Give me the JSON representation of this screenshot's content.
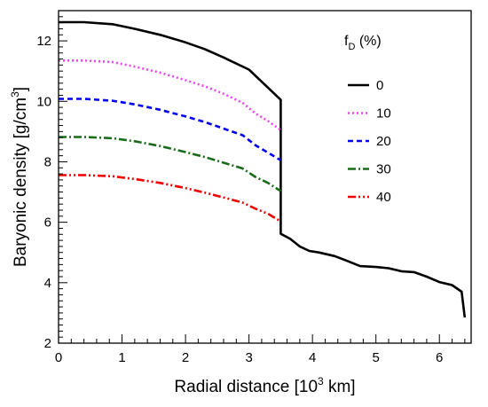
{
  "chart_data": {
    "type": "line",
    "title": "",
    "xlabel": "Radial distance [10",
    "xlabel_sup": "3",
    "xlabel_tail": " km]",
    "ylabel": "Baryonic density [g/cm",
    "ylabel_sup": "3",
    "ylabel_tail": "]",
    "xlim": [
      0,
      6.5
    ],
    "ylim": [
      2,
      13
    ],
    "x_ticks": [
      0,
      1,
      2,
      3,
      4,
      5,
      6
    ],
    "y_ticks": [
      2,
      4,
      6,
      8,
      10,
      12
    ],
    "grid": false,
    "legend": {
      "title_main": "f",
      "title_sub": "D",
      "title_tail": " (%)",
      "placement": "right"
    },
    "series": [
      {
        "name": "0",
        "color": "#000000",
        "dash": "solid",
        "points": [
          [
            0,
            12.62
          ],
          [
            0.4,
            12.62
          ],
          [
            0.85,
            12.55
          ],
          [
            1.2,
            12.4
          ],
          [
            1.6,
            12.2
          ],
          [
            2.0,
            11.95
          ],
          [
            2.3,
            11.73
          ],
          [
            2.6,
            11.45
          ],
          [
            3.0,
            11.05
          ],
          [
            3.3,
            10.45
          ],
          [
            3.5,
            10.05
          ],
          [
            3.5,
            5.62
          ],
          [
            3.65,
            5.45
          ],
          [
            3.8,
            5.2
          ],
          [
            3.95,
            5.05
          ],
          [
            4.1,
            5.0
          ],
          [
            4.35,
            4.88
          ],
          [
            4.55,
            4.72
          ],
          [
            4.75,
            4.55
          ],
          [
            5.0,
            4.52
          ],
          [
            5.2,
            4.48
          ],
          [
            5.4,
            4.38
          ],
          [
            5.6,
            4.35
          ],
          [
            5.8,
            4.2
          ],
          [
            6.0,
            4.02
          ],
          [
            6.2,
            3.92
          ],
          [
            6.35,
            3.7
          ],
          [
            6.4,
            2.85
          ]
        ]
      },
      {
        "name": "10",
        "color": "#ee44ee",
        "dash": "dotted",
        "points": [
          [
            0,
            11.35
          ],
          [
            0.4,
            11.35
          ],
          [
            0.85,
            11.3
          ],
          [
            1.2,
            11.15
          ],
          [
            1.6,
            10.95
          ],
          [
            2.0,
            10.7
          ],
          [
            2.3,
            10.5
          ],
          [
            2.6,
            10.25
          ],
          [
            2.9,
            9.95
          ],
          [
            3.1,
            9.6
          ],
          [
            3.3,
            9.35
          ],
          [
            3.5,
            9.05
          ]
        ]
      },
      {
        "name": "20",
        "color": "#0000ee",
        "dash": "dashed",
        "points": [
          [
            0,
            10.08
          ],
          [
            0.4,
            10.08
          ],
          [
            0.85,
            10.02
          ],
          [
            1.2,
            9.9
          ],
          [
            1.6,
            9.72
          ],
          [
            2.0,
            9.5
          ],
          [
            2.3,
            9.32
          ],
          [
            2.6,
            9.1
          ],
          [
            2.9,
            8.88
          ],
          [
            3.1,
            8.55
          ],
          [
            3.3,
            8.3
          ],
          [
            3.5,
            8.05
          ]
        ]
      },
      {
        "name": "30",
        "color": "#1a6b1a",
        "dash": "dashdot",
        "points": [
          [
            0,
            8.82
          ],
          [
            0.4,
            8.82
          ],
          [
            0.85,
            8.78
          ],
          [
            1.2,
            8.68
          ],
          [
            1.6,
            8.52
          ],
          [
            2.0,
            8.32
          ],
          [
            2.3,
            8.16
          ],
          [
            2.6,
            7.97
          ],
          [
            2.9,
            7.78
          ],
          [
            3.1,
            7.5
          ],
          [
            3.3,
            7.3
          ],
          [
            3.5,
            7.03
          ]
        ]
      },
      {
        "name": "40",
        "color": "#ee0000",
        "dash": "dashdotdot",
        "points": [
          [
            0,
            7.56
          ],
          [
            0.4,
            7.56
          ],
          [
            0.85,
            7.52
          ],
          [
            1.2,
            7.43
          ],
          [
            1.6,
            7.3
          ],
          [
            2.0,
            7.13
          ],
          [
            2.3,
            6.98
          ],
          [
            2.6,
            6.82
          ],
          [
            2.9,
            6.65
          ],
          [
            3.1,
            6.45
          ],
          [
            3.3,
            6.28
          ],
          [
            3.5,
            6.03
          ]
        ]
      }
    ]
  }
}
